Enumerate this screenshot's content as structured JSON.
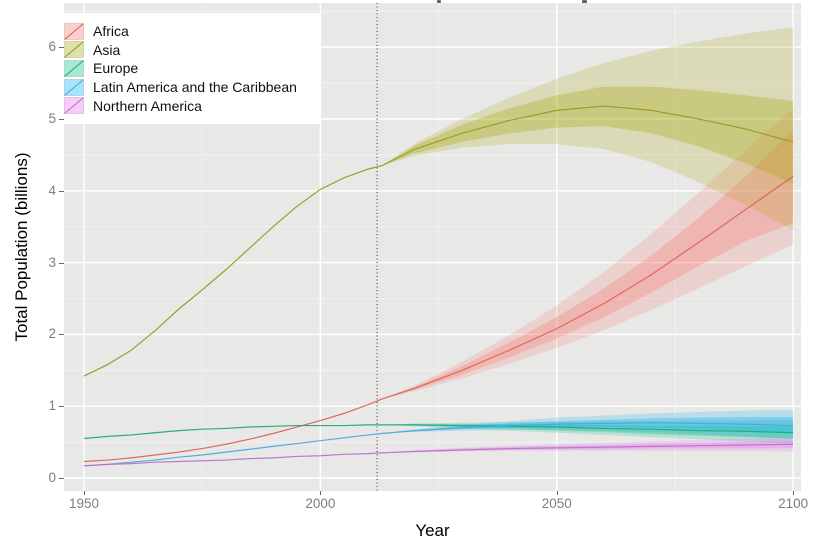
{
  "figure": {
    "xlabel": "Year",
    "ylabel": "Total Population (billions)",
    "panel_bg": "#e8e8e7",
    "grid_major_color": "#ffffff",
    "grid_minor_color": "#f2f2f1",
    "tick_label_color": "#7e7e7e",
    "tick_mark_color": "#666666",
    "vline_color": "#333333",
    "legend_position": "top-left"
  },
  "chart_data": {
    "type": "line",
    "title": "",
    "xlabel": "Year",
    "ylabel": "Total Population (billions)",
    "xlim": [
      1945.77,
      2101.67
    ],
    "ylim": [
      -0.181,
      6.615
    ],
    "x_ticks": [
      1950,
      2000,
      2050,
      2100
    ],
    "x_minor_ticks": [
      1975,
      2025,
      2075
    ],
    "y_ticks": [
      0,
      1,
      2,
      3,
      4,
      5,
      6
    ],
    "y_minor_ticks": [
      0.5,
      1.5,
      2.5,
      3.5,
      4.5,
      5.5,
      6.5
    ],
    "grid": true,
    "legend_position": "top-left",
    "vline_year": 2012,
    "x": [
      1950,
      1955,
      1960,
      1965,
      1970,
      1975,
      1980,
      1985,
      1990,
      1995,
      2000,
      2005,
      2010,
      2013,
      2020,
      2030,
      2040,
      2050,
      2060,
      2070,
      2080,
      2090,
      2100
    ],
    "band_x": [
      2013,
      2020,
      2030,
      2040,
      2050,
      2060,
      2070,
      2080,
      2090,
      2100
    ],
    "series": [
      {
        "name": "Africa",
        "line_color": "#de6257",
        "fill_color": "#f8766d",
        "median": [
          0.23,
          0.25,
          0.28,
          0.32,
          0.36,
          0.41,
          0.47,
          0.54,
          0.62,
          0.71,
          0.8,
          0.9,
          1.02,
          1.1,
          1.25,
          1.5,
          1.78,
          2.08,
          2.43,
          2.83,
          3.28,
          3.74,
          4.2
        ],
        "ci80": {
          "lower": [
            1.1,
            1.23,
            1.44,
            1.68,
            1.94,
            2.24,
            2.58,
            2.95,
            3.3,
            3.55
          ],
          "upper": [
            1.1,
            1.27,
            1.56,
            1.89,
            2.24,
            2.64,
            3.1,
            3.62,
            4.2,
            4.85
          ]
        },
        "ci95": {
          "lower": [
            1.1,
            1.21,
            1.39,
            1.59,
            1.81,
            2.06,
            2.34,
            2.64,
            2.95,
            3.25
          ],
          "upper": [
            1.1,
            1.29,
            1.62,
            1.99,
            2.4,
            2.87,
            3.4,
            3.97,
            4.57,
            5.15
          ]
        }
      },
      {
        "name": "Asia",
        "line_color": "#9a9a22",
        "fill_color": "#a3a500",
        "median": [
          1.42,
          1.58,
          1.78,
          2.05,
          2.35,
          2.62,
          2.9,
          3.2,
          3.5,
          3.78,
          4.02,
          4.18,
          4.3,
          4.35,
          4.58,
          4.8,
          4.98,
          5.12,
          5.18,
          5.12,
          5.0,
          4.86,
          4.68
        ],
        "ci80": {
          "lower": [
            4.35,
            4.52,
            4.68,
            4.8,
            4.88,
            4.9,
            4.8,
            4.62,
            4.38,
            4.1
          ],
          "upper": [
            4.35,
            4.63,
            4.92,
            5.15,
            5.33,
            5.45,
            5.45,
            5.4,
            5.33,
            5.25
          ]
        },
        "ci95": {
          "lower": [
            4.35,
            4.49,
            4.6,
            4.65,
            4.65,
            4.58,
            4.4,
            4.12,
            3.8,
            3.45
          ],
          "upper": [
            4.35,
            4.66,
            5.0,
            5.3,
            5.56,
            5.78,
            5.95,
            6.08,
            6.19,
            6.28
          ]
        }
      },
      {
        "name": "Europe",
        "line_color": "#1fa87e",
        "fill_color": "#00bf7d",
        "median": [
          0.55,
          0.58,
          0.6,
          0.63,
          0.66,
          0.68,
          0.69,
          0.71,
          0.72,
          0.73,
          0.73,
          0.73,
          0.74,
          0.74,
          0.74,
          0.73,
          0.72,
          0.71,
          0.69,
          0.68,
          0.66,
          0.65,
          0.63
        ],
        "ci80": {
          "lower": [
            0.74,
            0.73,
            0.71,
            0.69,
            0.66,
            0.64,
            0.61,
            0.59,
            0.57,
            0.55
          ],
          "upper": [
            0.74,
            0.75,
            0.75,
            0.75,
            0.74,
            0.74,
            0.73,
            0.73,
            0.72,
            0.72
          ]
        },
        "ci95": {
          "lower": [
            0.74,
            0.72,
            0.69,
            0.66,
            0.63,
            0.6,
            0.57,
            0.54,
            0.51,
            0.48
          ],
          "upper": [
            0.74,
            0.76,
            0.77,
            0.78,
            0.78,
            0.79,
            0.79,
            0.8,
            0.8,
            0.81
          ]
        }
      },
      {
        "name": "Latin America and the Caribbean",
        "line_color": "#4fa7dc",
        "fill_color": "#00b0f6",
        "median": [
          0.17,
          0.19,
          0.22,
          0.25,
          0.29,
          0.32,
          0.36,
          0.4,
          0.44,
          0.48,
          0.52,
          0.56,
          0.6,
          0.62,
          0.66,
          0.7,
          0.73,
          0.75,
          0.76,
          0.77,
          0.76,
          0.75,
          0.73
        ],
        "ci80": {
          "lower": [
            0.62,
            0.65,
            0.68,
            0.7,
            0.71,
            0.71,
            0.7,
            0.68,
            0.66,
            0.63
          ],
          "upper": [
            0.62,
            0.67,
            0.72,
            0.76,
            0.79,
            0.81,
            0.83,
            0.84,
            0.85,
            0.85
          ]
        },
        "ci95": {
          "lower": [
            0.62,
            0.64,
            0.66,
            0.67,
            0.67,
            0.66,
            0.64,
            0.61,
            0.58,
            0.55
          ],
          "upper": [
            0.62,
            0.68,
            0.74,
            0.79,
            0.84,
            0.87,
            0.9,
            0.92,
            0.94,
            0.95
          ]
        }
      },
      {
        "name": "Northern America",
        "line_color": "#b973c9",
        "fill_color": "#e76bf3",
        "median": [
          0.17,
          0.19,
          0.2,
          0.22,
          0.23,
          0.24,
          0.25,
          0.27,
          0.28,
          0.3,
          0.31,
          0.33,
          0.34,
          0.35,
          0.37,
          0.39,
          0.41,
          0.42,
          0.43,
          0.44,
          0.45,
          0.46,
          0.47
        ],
        "ci80": {
          "lower": [
            0.35,
            0.36,
            0.38,
            0.39,
            0.4,
            0.4,
            0.41,
            0.41,
            0.41,
            0.42
          ],
          "upper": [
            0.35,
            0.38,
            0.41,
            0.43,
            0.45,
            0.46,
            0.48,
            0.49,
            0.51,
            0.52
          ]
        },
        "ci95": {
          "lower": [
            0.35,
            0.355,
            0.37,
            0.38,
            0.38,
            0.38,
            0.38,
            0.38,
            0.38,
            0.37
          ],
          "upper": [
            0.35,
            0.39,
            0.42,
            0.45,
            0.47,
            0.49,
            0.51,
            0.53,
            0.55,
            0.57
          ]
        }
      }
    ]
  }
}
